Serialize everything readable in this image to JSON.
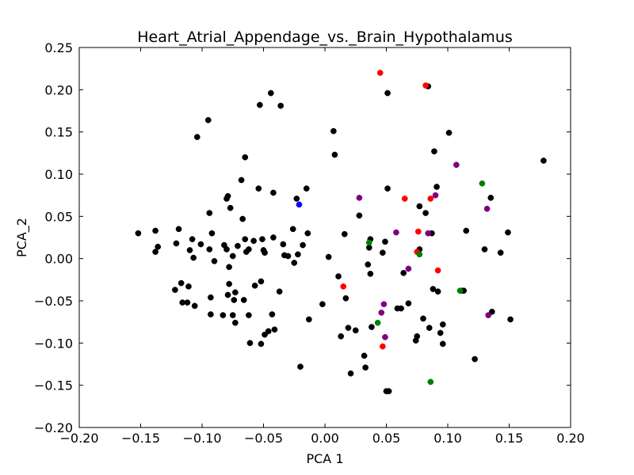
{
  "chart_data": {
    "type": "scatter",
    "title": "Heart_Atrial_Appendage_vs._Brain_Hypothalamus",
    "xlabel": "PCA 1",
    "ylabel": "PCA_2",
    "xlim": [
      -0.2,
      0.2
    ],
    "ylim": [
      -0.2,
      0.25
    ],
    "xticks": [
      "−0.20",
      "−0.15",
      "−0.10",
      "−0.05",
      "0.00",
      "0.05",
      "0.10",
      "0.15",
      "0.20"
    ],
    "xtick_values": [
      -0.2,
      -0.15,
      -0.1,
      -0.05,
      0.0,
      0.05,
      0.1,
      0.15,
      0.2
    ],
    "yticks": [
      "−0.20",
      "−0.15",
      "−0.10",
      "−0.05",
      "0.00",
      "0.05",
      "0.10",
      "0.15",
      "0.20",
      "0.25"
    ],
    "ytick_values": [
      -0.2,
      -0.15,
      -0.1,
      -0.05,
      0.0,
      0.05,
      0.1,
      0.15,
      0.2,
      0.25
    ],
    "grid": false,
    "series": [
      {
        "color": "#000000",
        "points": [
          [
            -0.152,
            0.03
          ],
          [
            -0.138,
            0.033
          ],
          [
            -0.138,
            0.008
          ],
          [
            -0.136,
            0.014
          ],
          [
            -0.121,
            0.018
          ],
          [
            -0.119,
            0.035
          ],
          [
            -0.122,
            -0.037
          ],
          [
            -0.117,
            -0.029
          ],
          [
            -0.116,
            -0.052
          ],
          [
            -0.112,
            -0.052
          ],
          [
            -0.111,
            -0.033
          ],
          [
            -0.11,
            0.01
          ],
          [
            -0.108,
            0.023
          ],
          [
            -0.107,
            0.001
          ],
          [
            -0.106,
            -0.056
          ],
          [
            -0.104,
            0.144
          ],
          [
            -0.101,
            0.017
          ],
          [
            -0.095,
            0.164
          ],
          [
            -0.094,
            0.054
          ],
          [
            -0.094,
            0.011
          ],
          [
            -0.093,
            -0.046
          ],
          [
            -0.093,
            -0.066
          ],
          [
            -0.092,
            0.03
          ],
          [
            -0.09,
            -0.003
          ],
          [
            -0.083,
            -0.067
          ],
          [
            -0.082,
            0.016
          ],
          [
            -0.08,
            0.071
          ],
          [
            -0.079,
            0.074
          ],
          [
            -0.08,
            0.011
          ],
          [
            -0.078,
            -0.01
          ],
          [
            -0.078,
            -0.03
          ],
          [
            -0.079,
            -0.043
          ],
          [
            -0.077,
            0.06
          ],
          [
            -0.075,
            0.003
          ],
          [
            -0.075,
            -0.067
          ],
          [
            -0.074,
            -0.049
          ],
          [
            -0.073,
            -0.04
          ],
          [
            -0.073,
            -0.076
          ],
          [
            -0.071,
            0.015
          ],
          [
            -0.068,
            0.093
          ],
          [
            -0.067,
            0.047
          ],
          [
            -0.066,
            -0.049
          ],
          [
            -0.065,
            0.12
          ],
          [
            -0.065,
            0.023
          ],
          [
            -0.064,
            0.008
          ],
          [
            -0.062,
            0.011
          ],
          [
            -0.062,
            -0.067
          ],
          [
            -0.061,
            -0.1
          ],
          [
            -0.058,
            0.021
          ],
          [
            -0.057,
            -0.032
          ],
          [
            -0.054,
            0.083
          ],
          [
            -0.053,
            0.182
          ],
          [
            -0.052,
            -0.027
          ],
          [
            -0.052,
            -0.101
          ],
          [
            -0.051,
            0.023
          ],
          [
            -0.05,
            0.01
          ],
          [
            -0.049,
            0.007
          ],
          [
            -0.049,
            -0.09
          ],
          [
            -0.046,
            -0.086
          ],
          [
            -0.044,
            0.196
          ],
          [
            -0.043,
            -0.066
          ],
          [
            -0.042,
            0.078
          ],
          [
            -0.042,
            0.025
          ],
          [
            -0.041,
            -0.084
          ],
          [
            -0.037,
            -0.039
          ],
          [
            -0.036,
            0.181
          ],
          [
            -0.034,
            0.017
          ],
          [
            -0.033,
            0.004
          ],
          [
            -0.03,
            0.003
          ],
          [
            -0.026,
            0.035
          ],
          [
            -0.025,
            -0.005
          ],
          [
            -0.023,
            0.071
          ],
          [
            -0.022,
            0.005
          ],
          [
            -0.02,
            -0.128
          ],
          [
            -0.018,
            0.016
          ],
          [
            -0.015,
            0.083
          ],
          [
            -0.014,
            0.03
          ],
          [
            -0.013,
            -0.072
          ],
          [
            -0.002,
            -0.054
          ],
          [
            0.003,
            0.002
          ],
          [
            0.007,
            0.151
          ],
          [
            0.008,
            0.123
          ],
          [
            0.011,
            -0.021
          ],
          [
            0.013,
            -0.092
          ],
          [
            0.016,
            0.029
          ],
          [
            0.017,
            -0.047
          ],
          [
            0.019,
            -0.082
          ],
          [
            0.021,
            -0.136
          ],
          [
            0.025,
            -0.085
          ],
          [
            0.028,
            0.051
          ],
          [
            0.032,
            -0.115
          ],
          [
            0.033,
            -0.129
          ],
          [
            0.035,
            -0.007
          ],
          [
            0.036,
            0.013
          ],
          [
            0.037,
            0.023
          ],
          [
            0.037,
            -0.018
          ],
          [
            0.038,
            -0.081
          ],
          [
            0.047,
            0.007
          ],
          [
            0.049,
            0.02
          ],
          [
            0.05,
            -0.157
          ],
          [
            0.052,
            -0.157
          ],
          [
            0.051,
            0.083
          ],
          [
            0.051,
            0.196
          ],
          [
            0.059,
            -0.059
          ],
          [
            0.062,
            -0.059
          ],
          [
            0.064,
            -0.017
          ],
          [
            0.068,
            -0.053
          ],
          [
            0.074,
            -0.097
          ],
          [
            0.075,
            -0.092
          ],
          [
            0.077,
            0.062
          ],
          [
            0.077,
            0.011
          ],
          [
            0.08,
            -0.071
          ],
          [
            0.082,
            0.054
          ],
          [
            0.084,
            0.204
          ],
          [
            0.085,
            -0.082
          ],
          [
            0.087,
            0.03
          ],
          [
            0.088,
            -0.036
          ],
          [
            0.089,
            0.127
          ],
          [
            0.091,
            0.085
          ],
          [
            0.092,
            -0.039
          ],
          [
            0.094,
            -0.088
          ],
          [
            0.096,
            -0.078
          ],
          [
            0.096,
            -0.101
          ],
          [
            0.101,
            0.149
          ],
          [
            0.111,
            -0.038
          ],
          [
            0.113,
            -0.038
          ],
          [
            0.115,
            0.033
          ],
          [
            0.122,
            -0.119
          ],
          [
            0.13,
            0.011
          ],
          [
            0.135,
            0.072
          ],
          [
            0.136,
            -0.063
          ],
          [
            0.143,
            0.007
          ],
          [
            0.149,
            0.031
          ],
          [
            0.151,
            -0.072
          ],
          [
            0.178,
            0.116
          ]
        ]
      },
      {
        "color": "#ff0000",
        "points": [
          [
            0.045,
            0.22
          ],
          [
            0.082,
            0.205
          ],
          [
            0.065,
            0.071
          ],
          [
            0.086,
            0.071
          ],
          [
            0.076,
            0.032
          ],
          [
            0.075,
            0.008
          ],
          [
            0.092,
            -0.014
          ],
          [
            0.015,
            -0.033
          ],
          [
            0.047,
            -0.104
          ]
        ]
      },
      {
        "color": "#800080",
        "points": [
          [
            0.107,
            0.111
          ],
          [
            0.09,
            0.075
          ],
          [
            0.028,
            0.072
          ],
          [
            0.132,
            0.059
          ],
          [
            0.058,
            0.031
          ],
          [
            0.084,
            0.03
          ],
          [
            0.068,
            -0.012
          ],
          [
            0.048,
            -0.054
          ],
          [
            0.046,
            -0.064
          ],
          [
            0.049,
            -0.093
          ],
          [
            0.133,
            -0.067
          ]
        ]
      },
      {
        "color": "#008000",
        "points": [
          [
            0.128,
            0.089
          ],
          [
            0.036,
            0.019
          ],
          [
            0.077,
            0.005
          ],
          [
            0.11,
            -0.038
          ],
          [
            0.043,
            -0.076
          ],
          [
            0.086,
            -0.146
          ]
        ]
      },
      {
        "color": "#0000ff",
        "points": [
          [
            -0.021,
            0.064
          ]
        ]
      }
    ]
  }
}
